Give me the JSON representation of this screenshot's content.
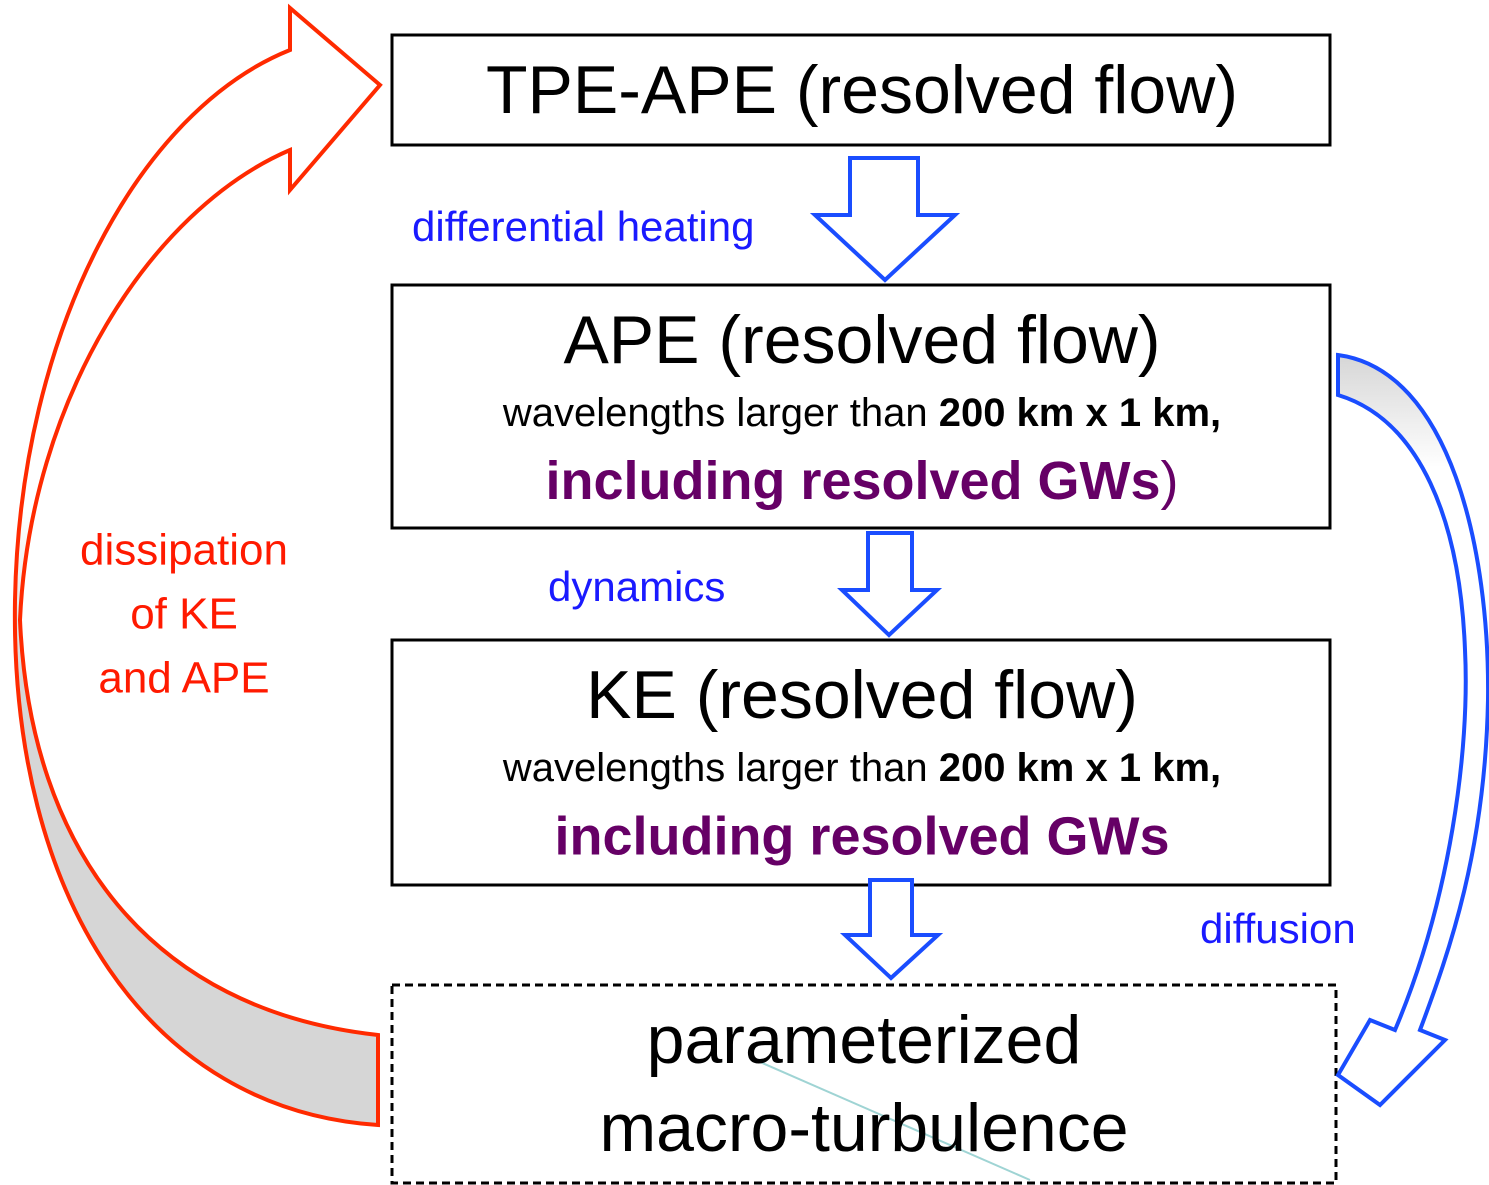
{
  "nodes": [
    {
      "label": "TPE-APE (resolved flow)"
    },
    {
      "label": "APE (resolved flow)",
      "detail": "wavelengths larger than ",
      "detail_bold": "200 km x 1 km,",
      "highlight": "including resolved GWs",
      "tail": ")"
    },
    {
      "label": "KE (resolved flow)",
      "detail": "wavelengths larger than ",
      "detail_bold": "200 km x 1 km,",
      "highlight": "including resolved GWs"
    },
    {
      "label": [
        "parameterized",
        "macro-turbulence"
      ]
    }
  ],
  "edges": [
    {
      "label": "differential heating"
    },
    {
      "label": "dynamics"
    },
    {
      "label": "diffusion"
    },
    {
      "label": [
        "dissipation",
        "of KE",
        "and APE"
      ]
    }
  ]
}
